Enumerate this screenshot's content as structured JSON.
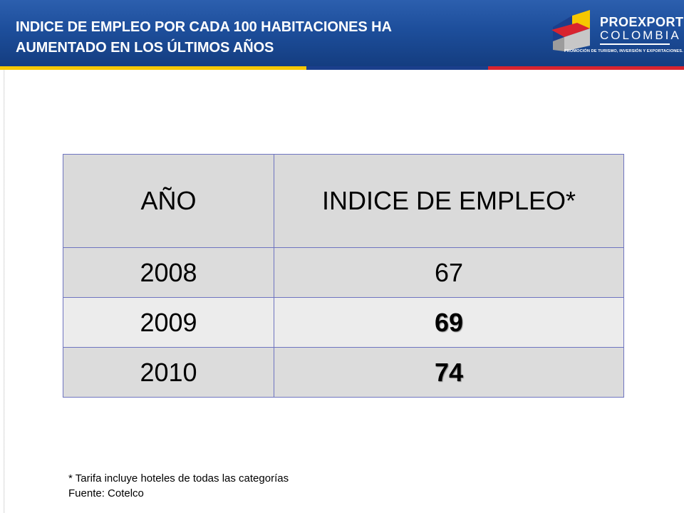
{
  "header": {
    "title_line1": "INDICE DE EMPLEO POR CADA 100 HABITACIONES HA",
    "title_line2": "AUMENTADO EN LOS ÚLTIMOS AÑOS"
  },
  "logo": {
    "word1": "PROEXPORT",
    "word2": "COLOMBIA",
    "tagline": "PROMOCIÓN DE TURISMO, INVERSIÓN Y EXPORTACIONES."
  },
  "colors": {
    "header_blue": "#1d4e9b",
    "stripe_yellow": "#f6c800",
    "stripe_blue": "#1b3f8c",
    "stripe_red": "#d8242f",
    "table_border": "#6e74c0"
  },
  "table": {
    "headers": [
      "AÑO",
      "INDICE DE EMPLEO*"
    ],
    "rows": [
      {
        "year": "2008",
        "value": "67"
      },
      {
        "year": "2009",
        "value": "69"
      },
      {
        "year": "2010",
        "value": "74"
      }
    ]
  },
  "notes": {
    "footnote": "* Tarifa incluye hoteles de todas las categorías",
    "source": "Fuente: Cotelco"
  }
}
